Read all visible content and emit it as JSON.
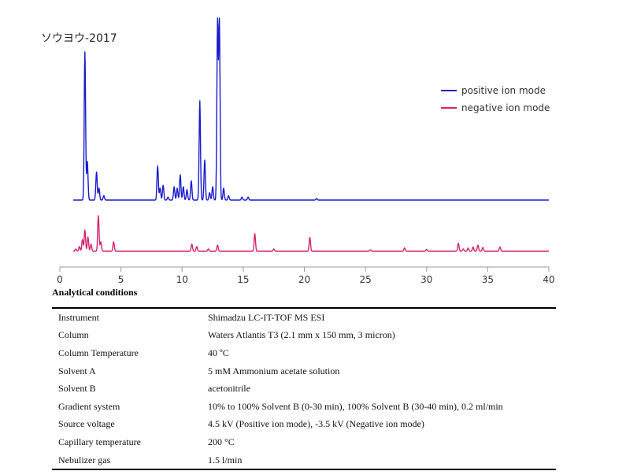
{
  "sample_title": "ソウヨウ-2017",
  "legend": {
    "positive": "positive ion mode",
    "negative": "negative ion mode"
  },
  "colors": {
    "positive": "#1a1acc",
    "negative": "#d6246e",
    "axis": "#9a9a9a",
    "text": "#333333"
  },
  "chart_data": {
    "type": "line",
    "title": "",
    "xlabel": "",
    "ylabel": "",
    "xlim": [
      0,
      40
    ],
    "x_ticks": [
      0,
      5,
      10,
      15,
      20,
      25,
      30,
      35,
      40
    ],
    "grid": false,
    "legend_position": "right",
    "series": [
      {
        "name": "positive ion mode",
        "peaks": [
          [
            2.05,
            1.0
          ],
          [
            2.25,
            0.26
          ],
          [
            3.0,
            0.19
          ],
          [
            3.2,
            0.08
          ],
          [
            3.6,
            0.03
          ],
          [
            8.0,
            0.23
          ],
          [
            8.2,
            0.08
          ],
          [
            8.45,
            0.1
          ],
          [
            8.85,
            0.02
          ],
          [
            9.35,
            0.09
          ],
          [
            9.6,
            0.08
          ],
          [
            9.85,
            0.17
          ],
          [
            10.1,
            0.09
          ],
          [
            10.4,
            0.07
          ],
          [
            10.75,
            0.13
          ],
          [
            11.45,
            0.67
          ],
          [
            11.85,
            0.27
          ],
          [
            12.25,
            0.05
          ],
          [
            12.5,
            0.09
          ],
          [
            12.9,
            1.2
          ],
          [
            13.05,
            1.2
          ],
          [
            13.4,
            0.08
          ],
          [
            13.8,
            0.03
          ],
          [
            14.9,
            0.02
          ],
          [
            15.4,
            0.02
          ],
          [
            21.0,
            0.01
          ]
        ]
      },
      {
        "name": "negative ion mode",
        "peaks": [
          [
            1.3,
            0.05
          ],
          [
            1.6,
            0.1
          ],
          [
            1.85,
            0.25
          ],
          [
            2.05,
            0.45
          ],
          [
            2.3,
            0.3
          ],
          [
            2.55,
            0.15
          ],
          [
            3.15,
            0.75
          ],
          [
            3.35,
            0.2
          ],
          [
            4.4,
            0.2
          ],
          [
            10.8,
            0.15
          ],
          [
            11.2,
            0.1
          ],
          [
            12.15,
            0.05
          ],
          [
            12.9,
            0.13
          ],
          [
            15.95,
            0.37
          ],
          [
            17.5,
            0.05
          ],
          [
            20.45,
            0.29
          ],
          [
            25.4,
            0.03
          ],
          [
            28.2,
            0.07
          ],
          [
            30.0,
            0.04
          ],
          [
            32.6,
            0.17
          ],
          [
            33.0,
            0.05
          ],
          [
            33.4,
            0.07
          ],
          [
            33.8,
            0.09
          ],
          [
            34.2,
            0.13
          ],
          [
            34.6,
            0.08
          ],
          [
            36.0,
            0.09
          ]
        ]
      }
    ]
  },
  "conditions": {
    "title": "Analytical conditions",
    "rows": [
      {
        "label": "Instrument",
        "value": "Shimadzu LC-IT-TOF MS ESI"
      },
      {
        "label": "Column",
        "value": "Waters Atlantis T3 (2.1 mm x 150 mm, 3 micron)"
      },
      {
        "label": "Column Temperature",
        "value": "40 ºC"
      },
      {
        "label": "Solvent A",
        "value": "5 mM Ammonium acetate solution"
      },
      {
        "label": "Solvent B",
        "value": "acetonitrile"
      },
      {
        "label": "Gradient system",
        "value": "10% to 100% Solvent B (0-30 min), 100% Solvent B (30-40 min), 0.2 ml/min"
      },
      {
        "label": "Source voltage",
        "value": "4.5 kV (Positive ion mode), -3.5 kV (Negative ion mode)"
      },
      {
        "label": "Capillary temperature",
        "value": "200 °C"
      },
      {
        "label": "Nebulizer gas",
        "value": "1.5 l/min"
      }
    ]
  }
}
